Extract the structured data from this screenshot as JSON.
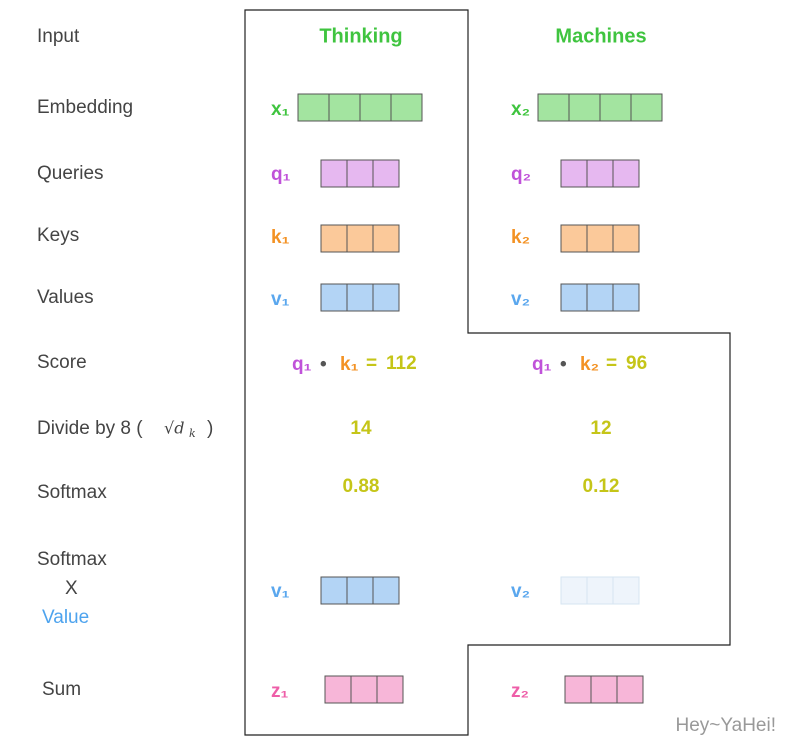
{
  "row_labels": {
    "input": "Input",
    "embedding": "Embedding",
    "queries": "Queries",
    "keys": "Keys",
    "values": "Values",
    "score": "Score",
    "divide": "Divide by 8 (",
    "divide_sqrt": "√d",
    "divide_sub": "k",
    "divide_close": ")",
    "softmax": "Softmax",
    "softmax_times": "Softmax",
    "times": "X",
    "value": "Value",
    "sum": "Sum"
  },
  "words": [
    {
      "word": "Thinking",
      "x": "x₁",
      "q": "q₁",
      "k": "k₁",
      "v": "v₁",
      "score_q": "q₁",
      "dot": "•",
      "score_k": "k₁",
      "eq": "=",
      "score": "112",
      "divided": "14",
      "softmax": "0.88",
      "v_weighted": "v₁",
      "z": "z₁"
    },
    {
      "word": "Machines",
      "x": "x₂",
      "q": "q₂",
      "k": "k₂",
      "v": "v₂",
      "score_q": "q₁",
      "dot": "•",
      "score_k": "k₂",
      "eq": "=",
      "score": "96",
      "divided": "12",
      "softmax": "0.12",
      "v_weighted": "v₂",
      "z": "z₂"
    }
  ],
  "watermark": "Hey~YaHei!"
}
